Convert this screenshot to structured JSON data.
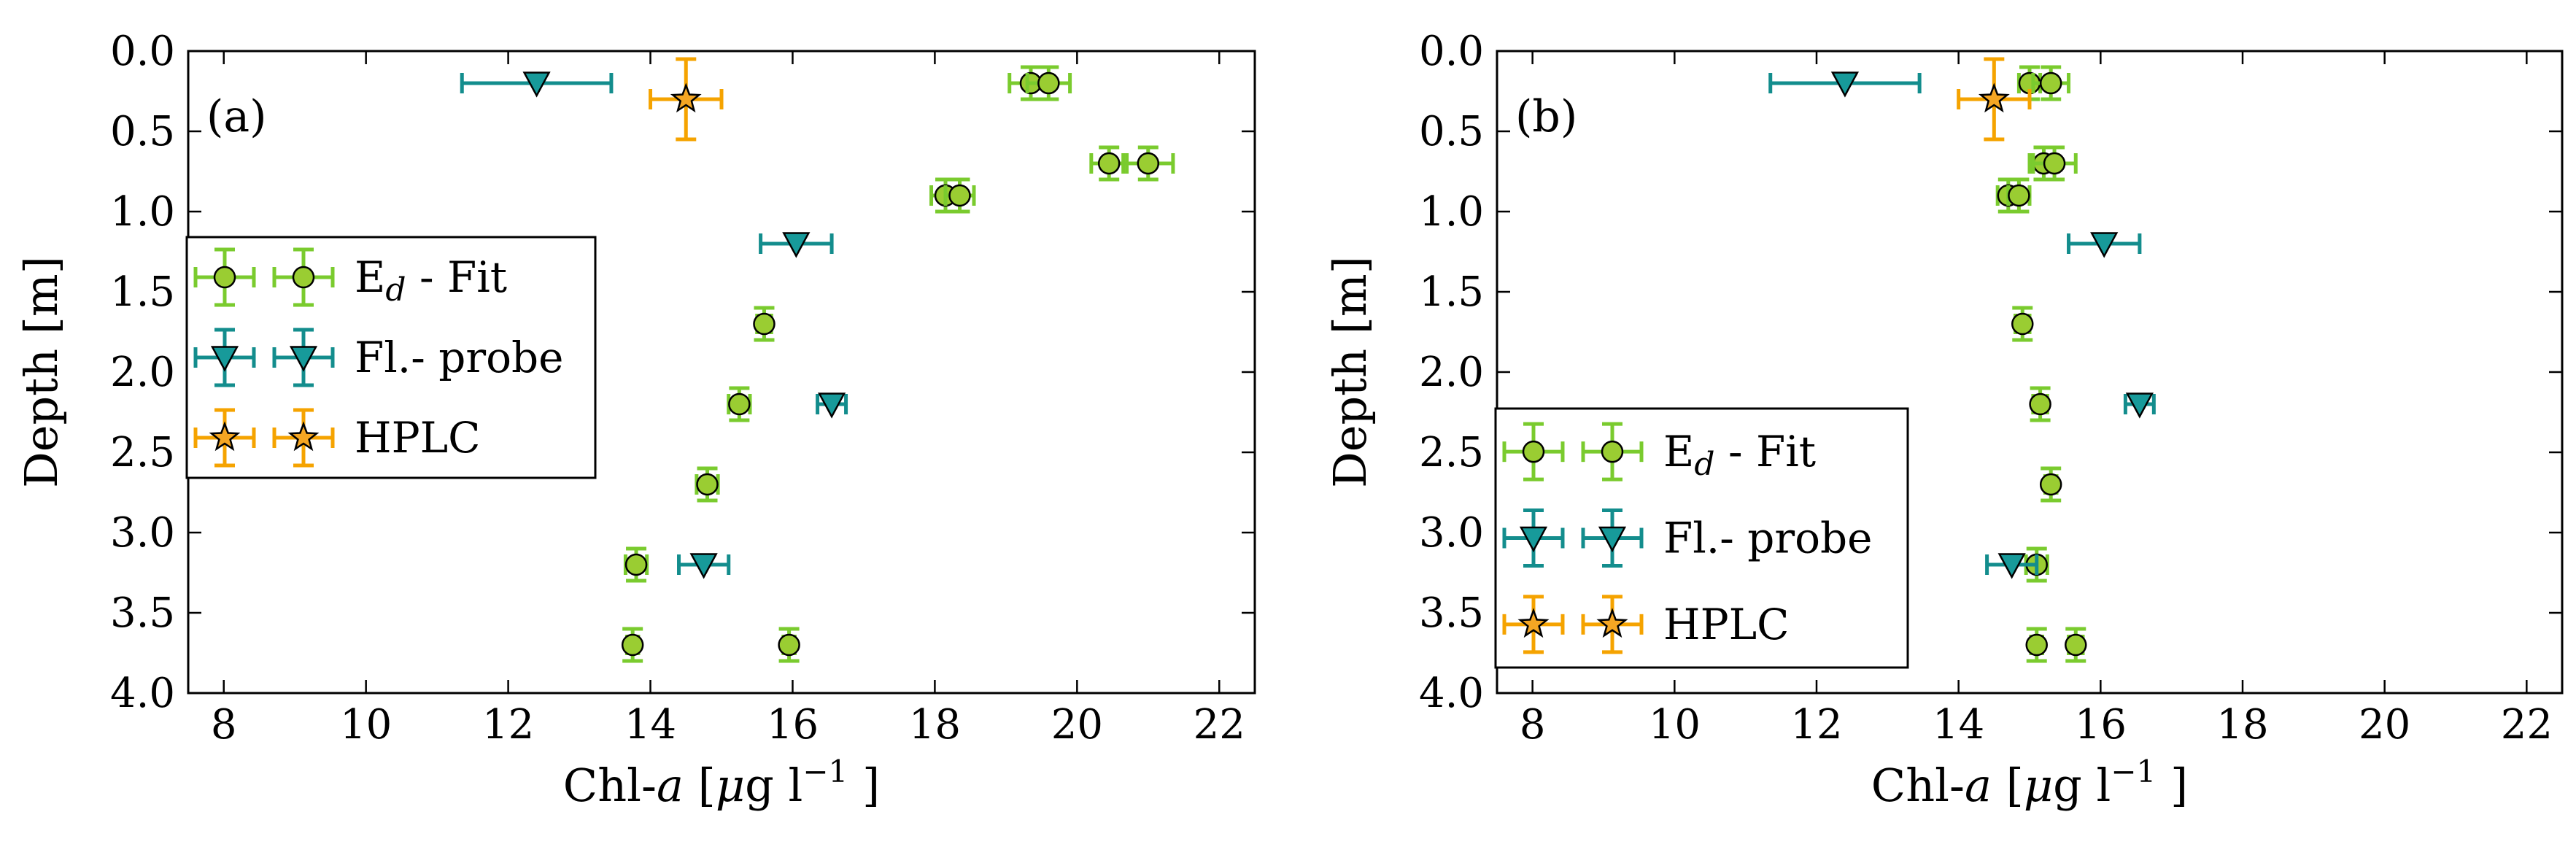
{
  "chart_data": [
    {
      "type": "scatter",
      "panel_label": "(a)",
      "xlabel": {
        "prefix": "Chl-",
        "italic": "a",
        "mid": " [",
        "mu": "μ",
        "unit": "g l",
        "sup": "−1",
        "suffix": " ]"
      },
      "ylabel": "Depth [m]",
      "xlim": [
        7.5,
        22.5
      ],
      "ylim": [
        4.0,
        0.0
      ],
      "x_ticks": [
        "8",
        "10",
        "12",
        "14",
        "16",
        "18",
        "20",
        "22"
      ],
      "y_ticks": [
        "0.0",
        "0.5",
        "1.0",
        "1.5",
        "2.0",
        "2.5",
        "3.0",
        "3.5",
        "4.0"
      ],
      "legend_position": "center-left",
      "series": [
        {
          "name": "Ed - Fit",
          "legend_main": "E",
          "legend_sub": "d",
          "legend_rest": " - Fit",
          "marker": "circle",
          "color": "#7acb2e",
          "fill": "#9acd32",
          "points": [
            {
              "x": 19.35,
              "y": 0.2,
              "xerr": 0.3,
              "yerr": 0.1
            },
            {
              "x": 19.6,
              "y": 0.2,
              "xerr": 0.3,
              "yerr": 0.1
            },
            {
              "x": 20.45,
              "y": 0.7,
              "xerr": 0.25,
              "yerr": 0.1
            },
            {
              "x": 21.0,
              "y": 0.7,
              "xerr": 0.35,
              "yerr": 0.1
            },
            {
              "x": 18.15,
              "y": 0.9,
              "xerr": 0.2,
              "yerr": 0.1
            },
            {
              "x": 18.35,
              "y": 0.9,
              "xerr": 0.2,
              "yerr": 0.1
            },
            {
              "x": 15.6,
              "y": 1.7,
              "xerr": 0.1,
              "yerr": 0.1
            },
            {
              "x": 15.25,
              "y": 2.2,
              "xerr": 0.15,
              "yerr": 0.1
            },
            {
              "x": 14.8,
              "y": 2.7,
              "xerr": 0.15,
              "yerr": 0.1
            },
            {
              "x": 13.8,
              "y": 3.2,
              "xerr": 0.15,
              "yerr": 0.1
            },
            {
              "x": 13.75,
              "y": 3.7,
              "xerr": 0.08,
              "yerr": 0.1
            },
            {
              "x": 15.95,
              "y": 3.7,
              "xerr": 0.08,
              "yerr": 0.1
            }
          ]
        },
        {
          "name": "Fl.- probe",
          "legend_main": "Fl.- probe",
          "legend_sub": "",
          "legend_rest": "",
          "marker": "triangle-down",
          "color": "#138d8d",
          "fill": "#179a9a",
          "points": [
            {
              "x": 12.4,
              "y": 0.2,
              "xerr": 1.05,
              "yerr": 0
            },
            {
              "x": 16.05,
              "y": 1.2,
              "xerr": 0.5,
              "yerr": 0
            },
            {
              "x": 16.55,
              "y": 2.2,
              "xerr": 0.2,
              "yerr": 0
            },
            {
              "x": 14.75,
              "y": 3.2,
              "xerr": 0.35,
              "yerr": 0
            }
          ]
        },
        {
          "name": "HPLC",
          "legend_main": "HPLC",
          "legend_sub": "",
          "legend_rest": "",
          "marker": "star",
          "color": "#f5a300",
          "fill": "#f5a623",
          "points": [
            {
              "x": 14.5,
              "y": 0.3,
              "xerr": 0.5,
              "yerr": 0.25
            }
          ]
        }
      ]
    },
    {
      "type": "scatter",
      "panel_label": "(b)",
      "xlabel": {
        "prefix": "Chl-",
        "italic": "a",
        "mid": " [",
        "mu": "μ",
        "unit": "g l",
        "sup": "−1",
        "suffix": " ]"
      },
      "ylabel": "Depth [m]",
      "xlim": [
        7.5,
        22.5
      ],
      "ylim": [
        4.0,
        0.0
      ],
      "x_ticks": [
        "8",
        "10",
        "12",
        "14",
        "16",
        "18",
        "20",
        "22"
      ],
      "y_ticks": [
        "0.0",
        "0.5",
        "1.0",
        "1.5",
        "2.0",
        "2.5",
        "3.0",
        "3.5",
        "4.0"
      ],
      "legend_position": "lower-left",
      "series": [
        {
          "name": "Ed - Fit",
          "legend_main": "E",
          "legend_sub": "d",
          "legend_rest": " - Fit",
          "marker": "circle",
          "color": "#7acb2e",
          "fill": "#9acd32",
          "points": [
            {
              "x": 15.0,
              "y": 0.2,
              "xerr": 0.15,
              "yerr": 0.1
            },
            {
              "x": 15.3,
              "y": 0.2,
              "xerr": 0.25,
              "yerr": 0.1
            },
            {
              "x": 15.2,
              "y": 0.7,
              "xerr": 0.2,
              "yerr": 0.1
            },
            {
              "x": 15.35,
              "y": 0.7,
              "xerr": 0.3,
              "yerr": 0.1
            },
            {
              "x": 14.7,
              "y": 0.9,
              "xerr": 0.15,
              "yerr": 0.1
            },
            {
              "x": 14.85,
              "y": 0.9,
              "xerr": 0.15,
              "yerr": 0.1
            },
            {
              "x": 14.9,
              "y": 1.7,
              "xerr": 0.1,
              "yerr": 0.1
            },
            {
              "x": 15.15,
              "y": 2.2,
              "xerr": 0.1,
              "yerr": 0.1
            },
            {
              "x": 15.3,
              "y": 2.7,
              "xerr": 0.08,
              "yerr": 0.1
            },
            {
              "x": 15.1,
              "y": 3.2,
              "xerr": 0.15,
              "yerr": 0.1
            },
            {
              "x": 15.1,
              "y": 3.7,
              "xerr": 0.08,
              "yerr": 0.1
            },
            {
              "x": 15.65,
              "y": 3.7,
              "xerr": 0.1,
              "yerr": 0.1
            }
          ]
        },
        {
          "name": "Fl.- probe",
          "legend_main": "Fl.- probe",
          "legend_sub": "",
          "legend_rest": "",
          "marker": "triangle-down",
          "color": "#138d8d",
          "fill": "#179a9a",
          "points": [
            {
              "x": 12.4,
              "y": 0.2,
              "xerr": 1.05,
              "yerr": 0
            },
            {
              "x": 16.05,
              "y": 1.2,
              "xerr": 0.5,
              "yerr": 0
            },
            {
              "x": 16.55,
              "y": 2.2,
              "xerr": 0.2,
              "yerr": 0
            },
            {
              "x": 14.75,
              "y": 3.2,
              "xerr": 0.35,
              "yerr": 0
            }
          ]
        },
        {
          "name": "HPLC",
          "legend_main": "HPLC",
          "legend_sub": "",
          "legend_rest": "",
          "marker": "star",
          "color": "#f5a300",
          "fill": "#f5a623",
          "points": [
            {
              "x": 14.5,
              "y": 0.3,
              "xerr": 0.5,
              "yerr": 0.25
            }
          ]
        }
      ]
    }
  ]
}
